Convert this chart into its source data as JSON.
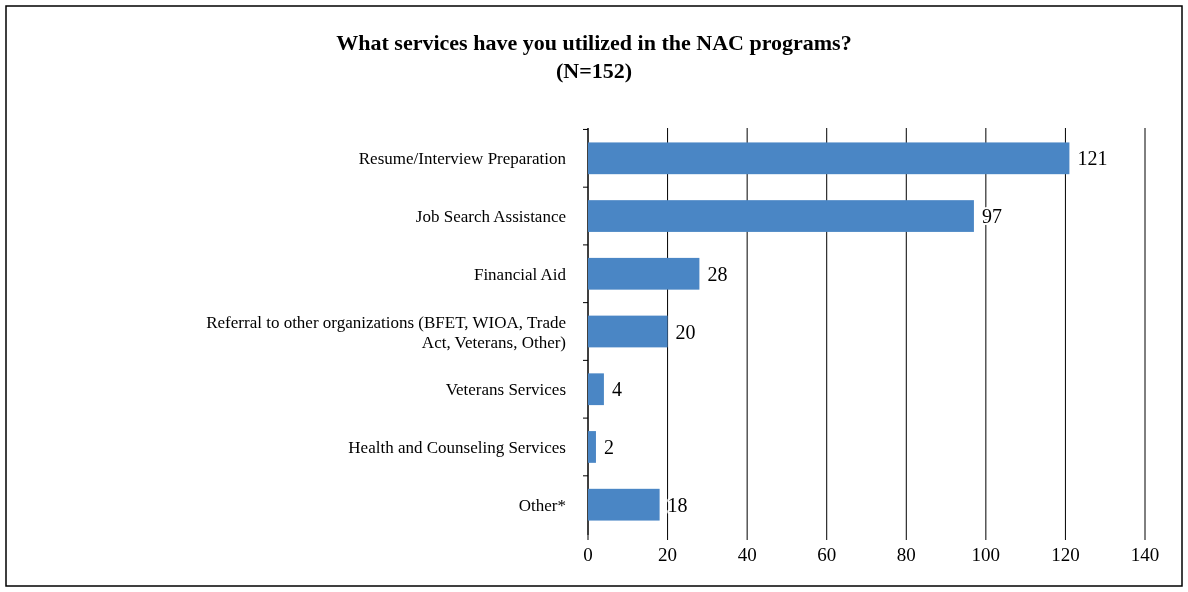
{
  "chart_data": {
    "type": "bar",
    "orientation": "horizontal",
    "title": "What services have you utilized in the NAC programs?",
    "subtitle": "(N=152)",
    "categories": [
      "Resume/Interview Preparation",
      "Job Search Assistance",
      "Financial Aid",
      "Referral to other organizations (BFET, WIOA, Trade Act, Veterans, Other)",
      "Veterans Services",
      "Health and Counseling Services",
      "Other*"
    ],
    "values": [
      121,
      97,
      28,
      20,
      4,
      2,
      18
    ],
    "color": "#4a86c5",
    "xlim": [
      0,
      140
    ],
    "xticks": [
      0,
      20,
      40,
      60,
      80,
      100,
      120,
      140
    ],
    "grid": "x",
    "data_labels": true
  }
}
